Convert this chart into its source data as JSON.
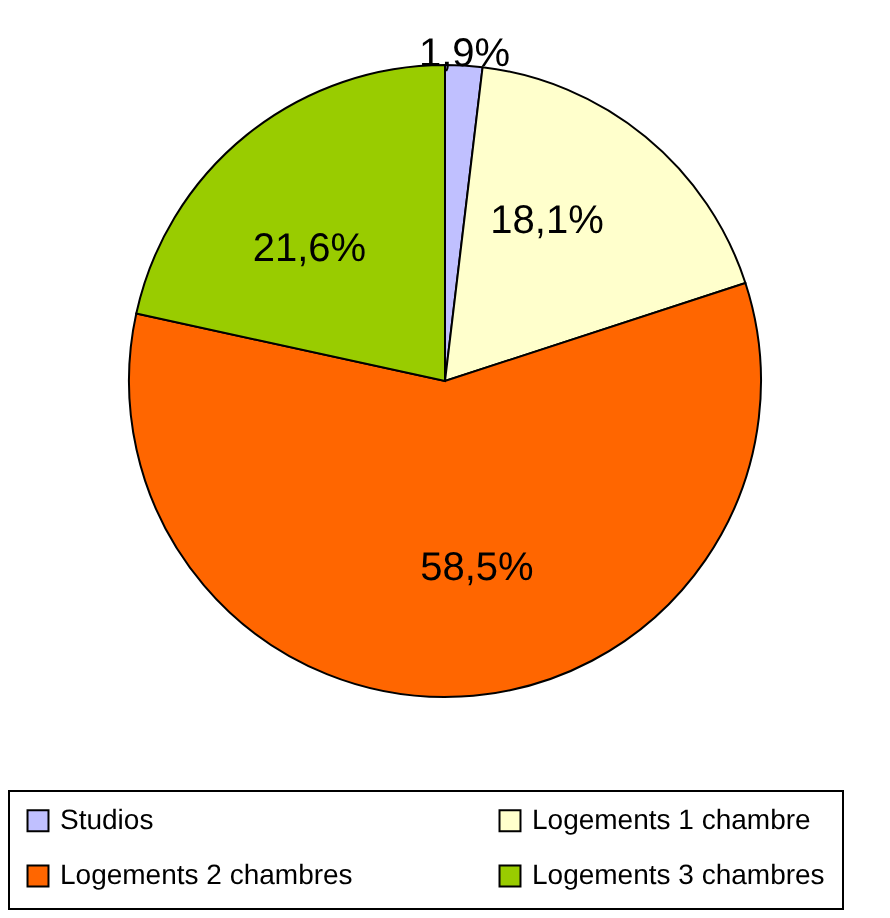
{
  "chart_data": {
    "type": "pie",
    "categories": [
      "Studios",
      "Logements 1 chambre",
      "Logements 2 chambres",
      "Logements 3 chambres"
    ],
    "values": [
      1.9,
      18.1,
      58.5,
      21.6
    ],
    "colors": [
      "#c0c0ff",
      "#ffffcc",
      "#ff6600",
      "#99cc00"
    ],
    "value_labels": [
      "1,9%",
      "18,1%",
      "58,5%",
      "21,6%"
    ],
    "legend": "bottom"
  }
}
